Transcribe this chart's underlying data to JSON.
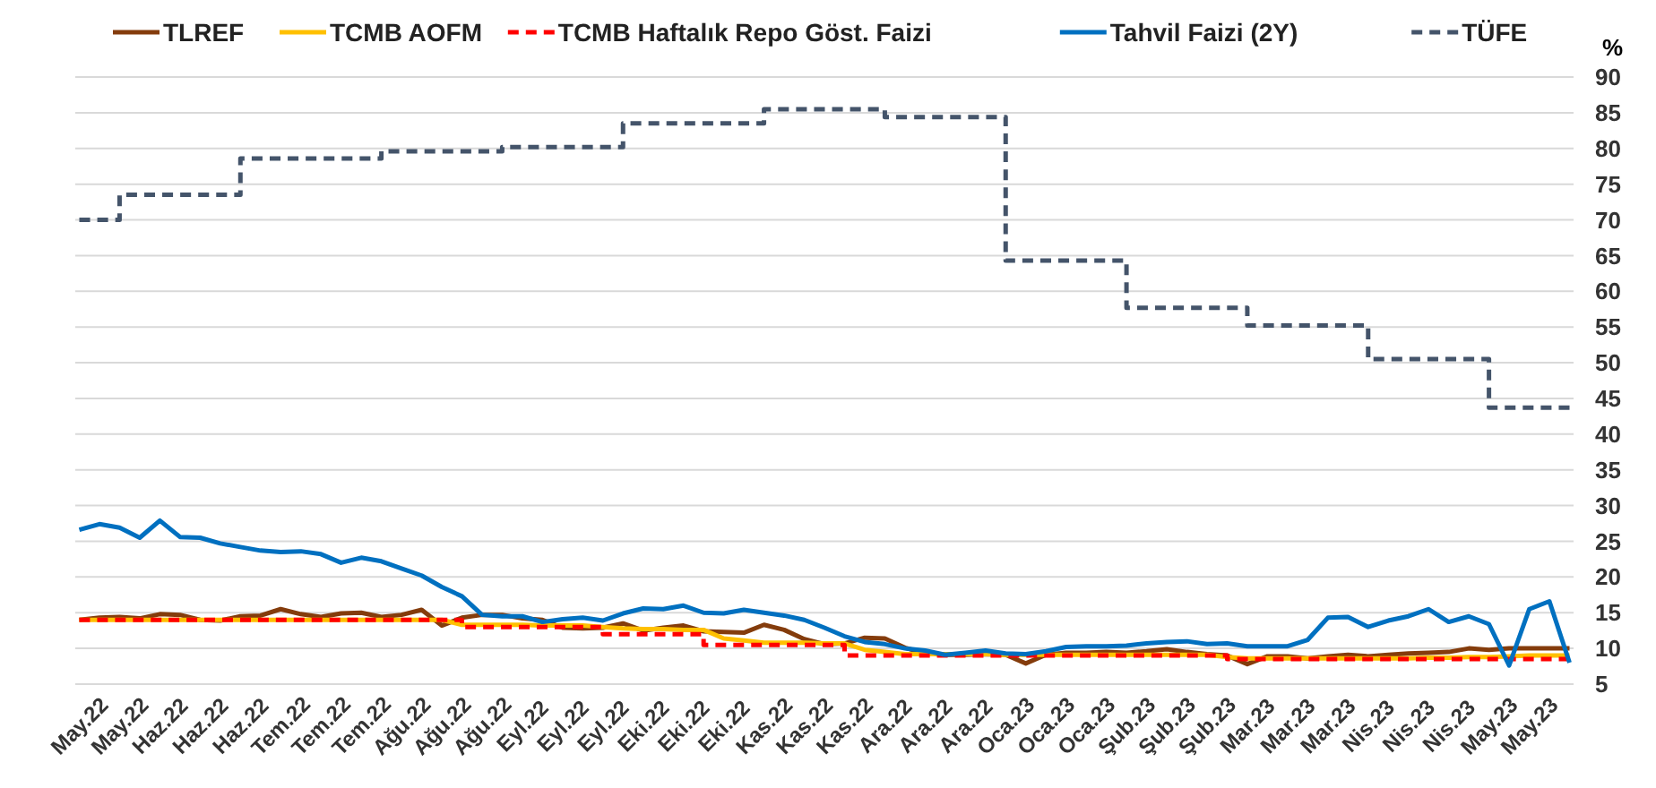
{
  "chart_data": {
    "type": "line",
    "ylabel": "%",
    "legend": "top",
    "grid": "y",
    "ylim": [
      5,
      90
    ],
    "yticks": [
      5,
      10,
      15,
      20,
      25,
      30,
      35,
      40,
      45,
      50,
      55,
      60,
      65,
      70,
      75,
      80,
      85,
      90
    ],
    "categories": [
      "May.22",
      null,
      "May.22",
      null,
      "Haz.22",
      null,
      "Haz.22",
      null,
      "Haz.22",
      null,
      "Tem.22",
      null,
      "Tem.22",
      null,
      "Tem.22",
      null,
      "Ağu.22",
      null,
      "Ağu.22",
      null,
      "Ağu.22",
      null,
      "Eyl.22",
      null,
      "Eyl.22",
      null,
      "Eyl.22",
      null,
      "Eki.22",
      null,
      "Eki.22",
      null,
      "Eki.22",
      null,
      "Kas.22",
      null,
      "Kas.22",
      null,
      "Kas.22",
      null,
      "Ara.22",
      null,
      "Ara.22",
      null,
      "Ara.22",
      null,
      "Oca.23",
      null,
      "Oca.23",
      null,
      "Oca.23",
      null,
      "Şub.23",
      null,
      "Şub.23",
      null,
      "Şub.23",
      null,
      "Mar.23",
      null,
      "Mar.23",
      null,
      "Mar.23",
      null,
      "Nis.23",
      null,
      "Nis.23",
      null,
      "Nis.23",
      null,
      "May.23",
      null,
      "May.23",
      null,
      null
    ],
    "series": [
      {
        "name": "TLREF",
        "color": "#843c0c",
        "type": "line",
        "line_style": "solid",
        "values": [
          14,
          14.3,
          14.4,
          14.2,
          14.8,
          14.7,
          14,
          13.9,
          14.5,
          14.6,
          15.5,
          14.8,
          14.4,
          14.9,
          15,
          14.4,
          14.7,
          15.4,
          13.2,
          14.3,
          14.7,
          14.7,
          14.2,
          14,
          12.9,
          12.8,
          12.9,
          13.5,
          12.5,
          12.9,
          13.2,
          12.4,
          12.3,
          12.2,
          13.3,
          12.6,
          11.3,
          10.6,
          10.7,
          11.5,
          11.4,
          10.1,
          9.3,
          9.1,
          9.1,
          9.2,
          9.1,
          7.9,
          9.1,
          9.4,
          9.4,
          9.5,
          9.4,
          9.6,
          9.9,
          9.5,
          9.2,
          9,
          7.8,
          8.9,
          8.9,
          8.6,
          8.9,
          9.1,
          8.9,
          9.1,
          9.3,
          9.4,
          9.5,
          10,
          9.8,
          10,
          10,
          10,
          10
        ]
      },
      {
        "name": "TCMB AOFM",
        "color": "#ffc000",
        "type": "line",
        "line_style": "solid",
        "values": [
          14,
          14,
          14,
          14,
          14,
          14,
          14,
          14,
          14,
          14,
          14,
          14,
          14,
          14,
          14,
          14,
          14,
          14,
          14,
          13.3,
          13.3,
          13.3,
          13.3,
          13.2,
          13.2,
          13.2,
          13,
          12.8,
          12.7,
          12.7,
          12.6,
          12.6,
          11.4,
          11.1,
          10.8,
          10.8,
          10.8,
          10.7,
          10.7,
          9.8,
          9.5,
          9.2,
          9.2,
          9.2,
          9.2,
          9.2,
          9.1,
          9.1,
          9.1,
          9.1,
          9.1,
          9.1,
          9.1,
          9.1,
          9.1,
          9.1,
          9.1,
          8.8,
          8.6,
          8.6,
          8.6,
          8.6,
          8.6,
          8.6,
          8.6,
          8.6,
          8.6,
          8.7,
          8.7,
          8.8,
          8.8,
          8.9,
          9,
          9,
          9
        ]
      },
      {
        "name": "TCMB Haftalık Repo Göst. Faizi",
        "color": "#ff0000",
        "type": "step",
        "line_style": "dashed",
        "values": [
          14,
          14,
          14,
          14,
          14,
          14,
          14,
          14,
          14,
          14,
          14,
          14,
          14,
          14,
          14,
          14,
          14,
          14,
          14,
          13,
          13,
          13,
          13,
          13,
          13,
          13,
          12,
          12,
          12,
          12,
          12,
          10.5,
          10.5,
          10.5,
          10.5,
          10.5,
          10.5,
          10.5,
          9,
          9,
          9,
          9,
          9,
          9,
          9,
          9,
          9,
          9,
          9,
          9,
          9,
          9,
          9,
          9,
          9,
          9,
          9,
          8.5,
          8.5,
          8.5,
          8.5,
          8.5,
          8.5,
          8.5,
          8.5,
          8.5,
          8.5,
          8.5,
          8.5,
          8.5,
          8.5,
          8.5,
          8.5,
          8.5,
          8.5
        ]
      },
      {
        "name": "Tahvil Faizi (2Y)",
        "color": "#0070c0",
        "type": "line",
        "line_style": "solid",
        "values": [
          26.6,
          27.4,
          26.9,
          25.5,
          27.9,
          25.6,
          25.5,
          24.7,
          24.2,
          23.7,
          23.5,
          23.6,
          23.2,
          22,
          22.7,
          22.2,
          21.2,
          20.2,
          18.6,
          17.3,
          14.7,
          14.5,
          14.5,
          13.7,
          14.1,
          14.3,
          13.9,
          14.9,
          15.6,
          15.5,
          16,
          15,
          14.9,
          15.4,
          15,
          14.6,
          14,
          12.9,
          11.7,
          10.9,
          10.6,
          10,
          9.7,
          9.1,
          9.4,
          9.7,
          9.3,
          9.2,
          9.6,
          10.2,
          10.3,
          10.3,
          10.4,
          10.7,
          10.9,
          11,
          10.6,
          10.7,
          10.3,
          10.3,
          10.3,
          11.2,
          14.3,
          14.4,
          13,
          13.9,
          14.5,
          15.5,
          13.7,
          14.5,
          13.4,
          7.6,
          15.5,
          16.6,
          8
        ]
      },
      {
        "name": "TÜFE",
        "color": "#44546a",
        "type": "step",
        "line_style": "dashed",
        "values": [
          70,
          70,
          73.5,
          73.5,
          73.5,
          73.5,
          73.5,
          73.5,
          78.6,
          78.6,
          78.6,
          78.6,
          78.6,
          78.6,
          78.6,
          79.6,
          79.6,
          79.6,
          79.6,
          79.6,
          79.6,
          80.2,
          80.2,
          80.2,
          80.2,
          80.2,
          80.2,
          83.5,
          83.5,
          83.5,
          83.5,
          83.5,
          83.5,
          83.5,
          85.5,
          85.5,
          85.5,
          85.5,
          85.5,
          85.5,
          84.4,
          84.4,
          84.4,
          84.4,
          84.4,
          84.4,
          64.3,
          64.3,
          64.3,
          64.3,
          64.3,
          64.3,
          57.7,
          57.7,
          57.7,
          57.7,
          57.7,
          57.7,
          55.2,
          55.2,
          55.2,
          55.2,
          55.2,
          55.2,
          50.5,
          50.5,
          50.5,
          50.5,
          50.5,
          50.5,
          43.7,
          43.7,
          43.7,
          43.7,
          43.7
        ]
      }
    ]
  }
}
